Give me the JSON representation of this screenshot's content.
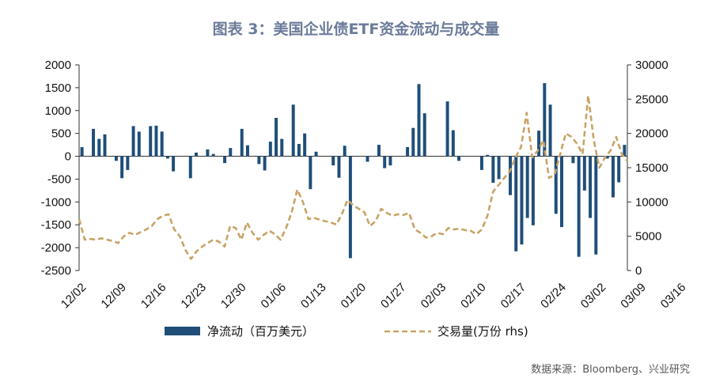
{
  "title": "图表 3：美国企业债ETF资金流动与成交量",
  "source": "数据来源：Bloomberg、兴业研究",
  "chart_data": {
    "type": "bar",
    "title": "图表 3：美国企业债ETF资金流动与成交量",
    "y_left": {
      "min": -2500,
      "max": 2000,
      "ticks": [
        2000,
        1500,
        1000,
        500,
        0,
        -500,
        -1000,
        -1500,
        -2000,
        -2500
      ]
    },
    "y_right": {
      "min": 0,
      "max": 30000,
      "ticks": [
        30000,
        25000,
        20000,
        15000,
        10000,
        5000,
        0
      ]
    },
    "x_ticks": [
      "12/02",
      "12/09",
      "12/16",
      "12/23",
      "12/30",
      "01/06",
      "01/13",
      "01/20",
      "01/27",
      "02/03",
      "02/10",
      "02/17",
      "02/24",
      "03/02",
      "03/09",
      "03/16"
    ],
    "x_tick_index": [
      0,
      7,
      14,
      21,
      28,
      35,
      42,
      49,
      56,
      63,
      70,
      77,
      84,
      91,
      98,
      105
    ],
    "series": [
      {
        "name": "净流动（百万美元）",
        "type": "bar",
        "axis": "left",
        "color": "#1f4e79",
        "values": [
          200,
          0,
          600,
          380,
          480,
          0,
          -100,
          -480,
          -300,
          660,
          540,
          0,
          660,
          670,
          540,
          -50,
          -330,
          0,
          0,
          -480,
          80,
          0,
          150,
          50,
          0,
          -150,
          180,
          0,
          600,
          240,
          0,
          -170,
          -310,
          320,
          840,
          380,
          0,
          1130,
          270,
          500,
          -720,
          100,
          0,
          0,
          -200,
          -470,
          230,
          -2230,
          0,
          0,
          -120,
          0,
          250,
          -260,
          -200,
          0,
          0,
          200,
          620,
          1580,
          940,
          0,
          0,
          0,
          1200,
          570,
          -100,
          0,
          0,
          0,
          -300,
          30,
          -580,
          -500,
          0,
          -850,
          -2080,
          -1930,
          -1350,
          -1510,
          560,
          1600,
          1130,
          -1260,
          -1550,
          0,
          -150,
          -2200,
          -750,
          -1350,
          -2150,
          0,
          -50,
          -900,
          -570,
          250
        ]
      },
      {
        "name": "交易量(万份 rhs)",
        "type": "line",
        "axis": "right",
        "color": "#c8a365",
        "values": [
          7500,
          4500,
          4600,
          4500,
          4700,
          4500,
          4300,
          4000,
          5000,
          5500,
          5200,
          5600,
          6000,
          6500,
          7500,
          8000,
          8200,
          6000,
          5000,
          3000,
          1700,
          2800,
          3500,
          4000,
          4500,
          4200,
          3500,
          6500,
          6200,
          4500,
          7000,
          5500,
          4500,
          5200,
          5800,
          5300,
          4500,
          6200,
          8500,
          11800,
          10000,
          7500,
          7700,
          7400,
          7200,
          7000,
          6700,
          8300,
          10300,
          9500,
          9000,
          8500,
          6500,
          7200,
          9000,
          8400,
          8000,
          8200,
          8100,
          8400,
          6000,
          5500,
          4800,
          5000,
          5500,
          5300,
          6200,
          6000,
          6100,
          5900,
          5800,
          5300,
          6000,
          8000,
          11500,
          12500,
          13500,
          14500,
          16500,
          18000,
          23000,
          16500,
          17500,
          19000,
          13500,
          14000,
          17000,
          20000,
          19500,
          18500,
          17000,
          25500,
          19000,
          15000,
          16500,
          17500,
          19500,
          17000,
          16000
        ]
      }
    ],
    "legend": {
      "position": "bottom-center"
    },
    "grid": false
  }
}
